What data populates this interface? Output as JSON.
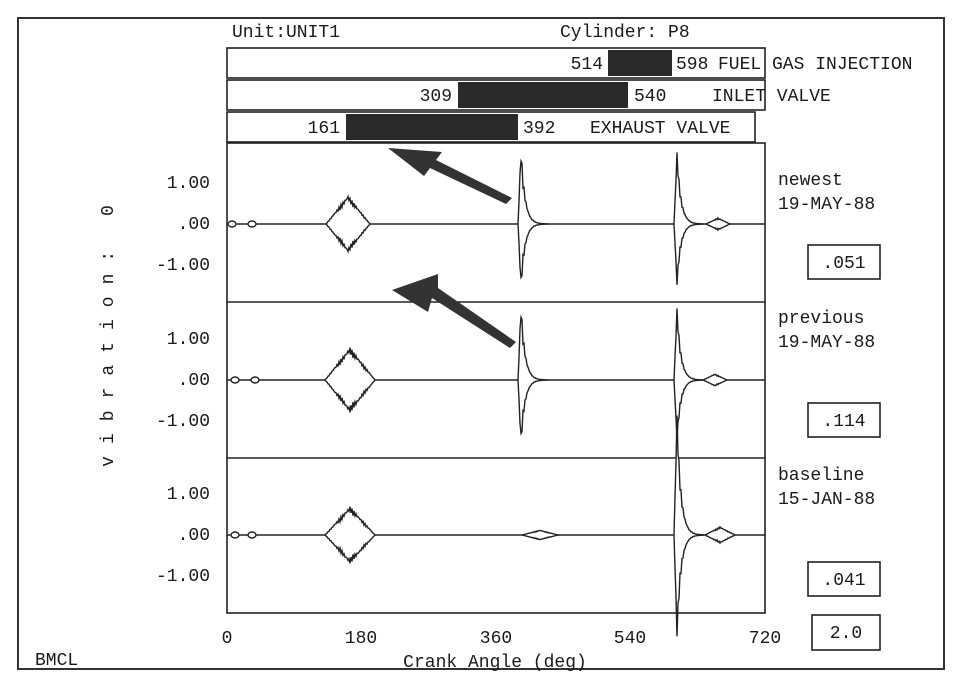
{
  "header": {
    "unit": "Unit:UNIT1",
    "cylinder": "Cylinder:  P8"
  },
  "valve_bars": [
    {
      "start": "514",
      "end": "598",
      "name": "FUEL GAS INJECTION"
    },
    {
      "start": "309",
      "end": "540",
      "name": "INLET VALVE"
    },
    {
      "start": "161",
      "end": "392",
      "name": "EXHAUST VALVE"
    }
  ],
  "y_axis_label": "vibration: 0",
  "y_tick_labels": [
    "1.00",
    ".00",
    "-1.00"
  ],
  "panels": [
    {
      "label": "newest",
      "date": "19-MAY-88",
      "value": ".051"
    },
    {
      "label": "previous",
      "date": "19-MAY-88",
      "value": ".114"
    },
    {
      "label": "baseline",
      "date": "15-JAN-88",
      "value": ".041"
    }
  ],
  "x_tick_labels": [
    "0",
    "180",
    "360",
    "540",
    "720"
  ],
  "x_axis_label": "Crank Angle (deg)",
  "scale_value": "2.0",
  "footer": "BMCL"
}
